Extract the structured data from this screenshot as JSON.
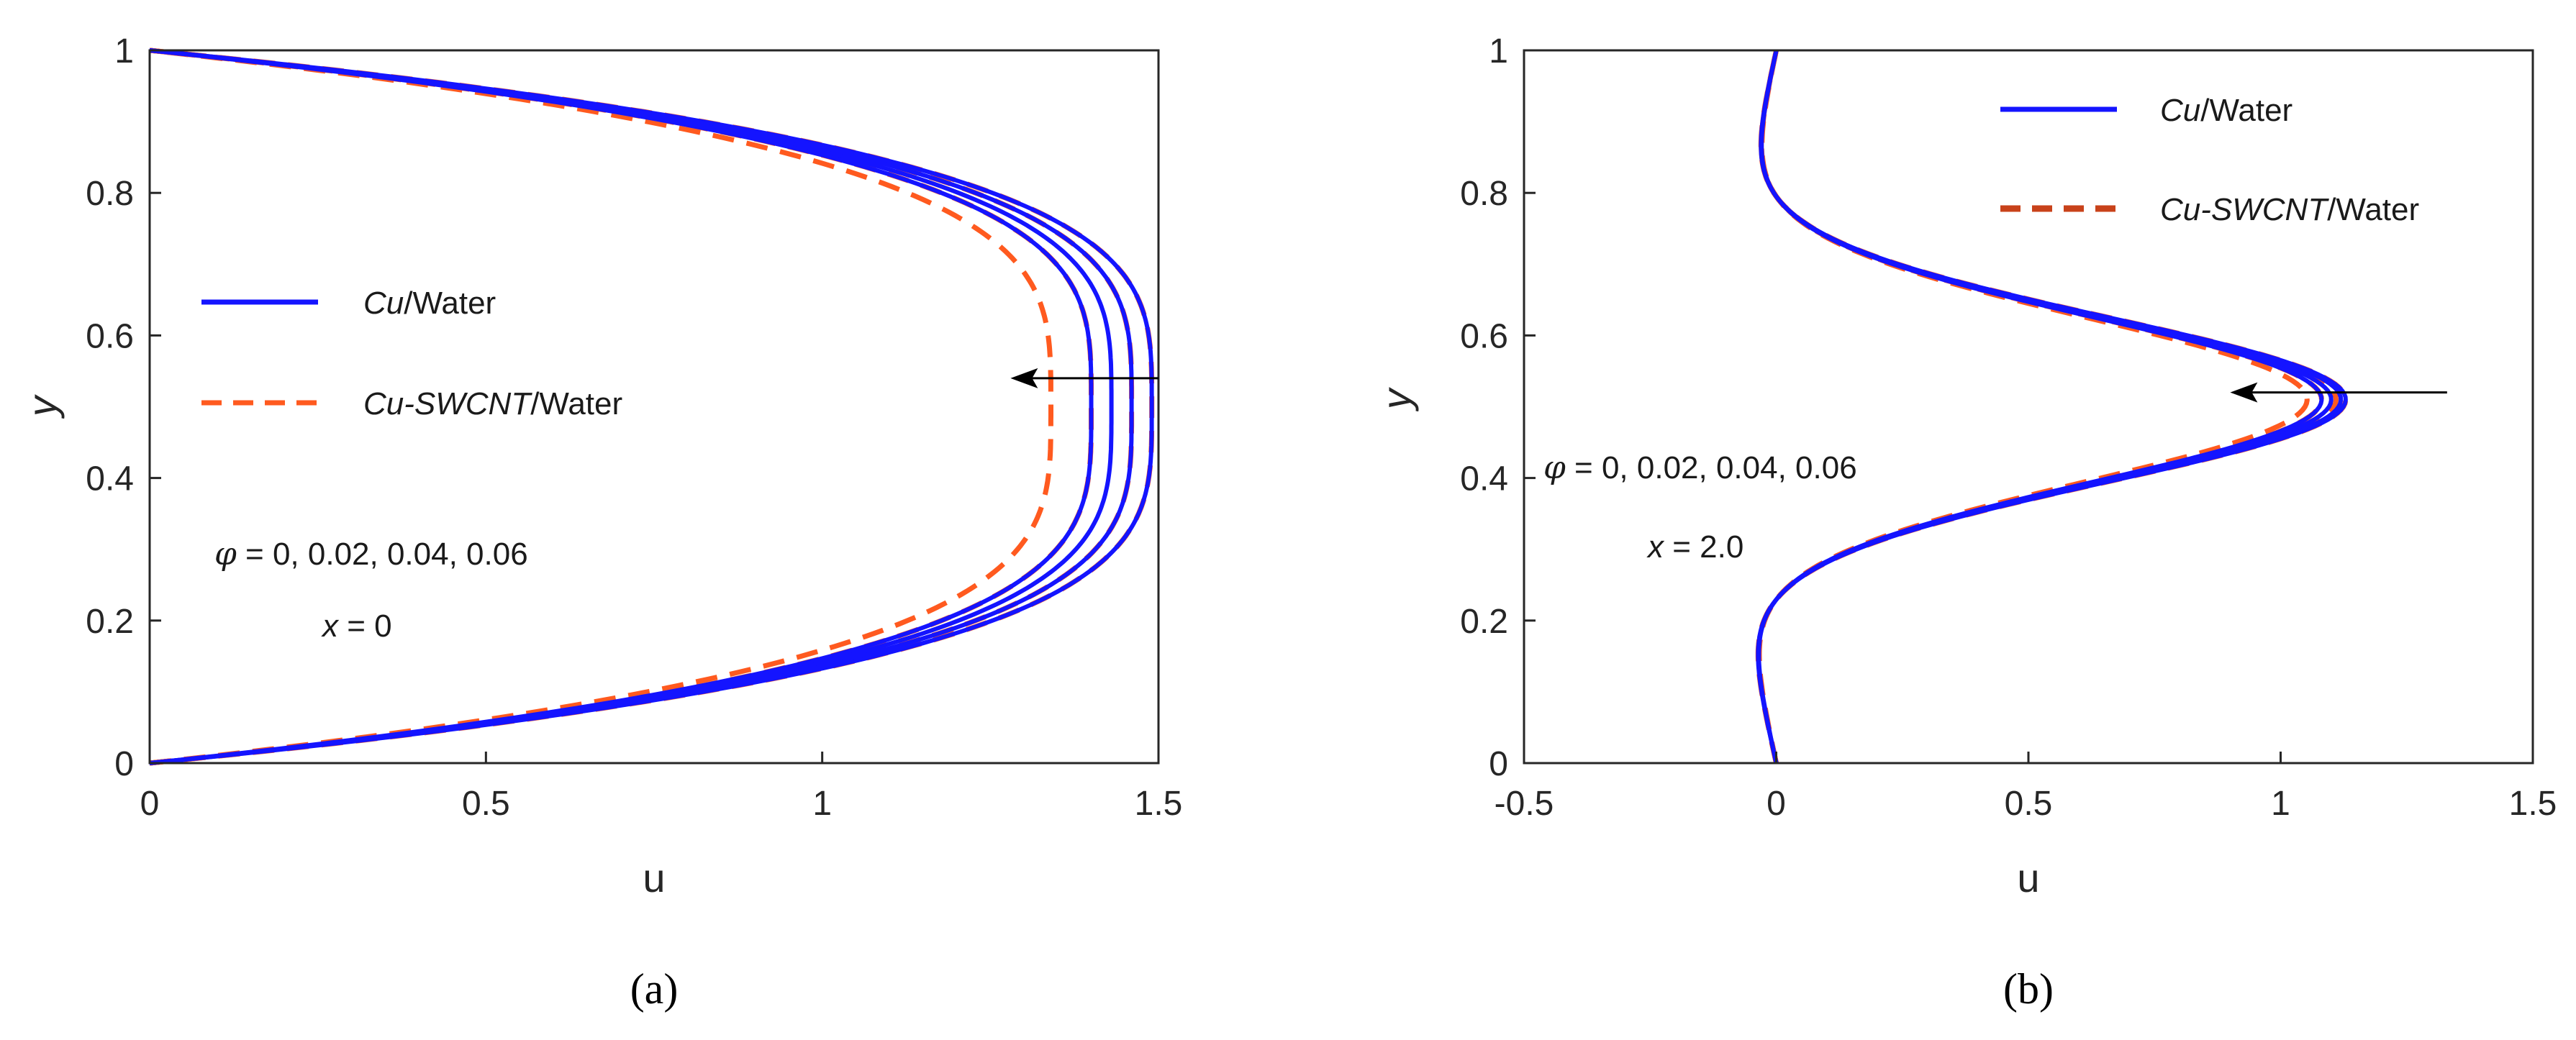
{
  "colors": {
    "cu_water": "#1414ff",
    "cu_swcnt_water": "#ff5a1f",
    "cu_swcnt_water_legend_b": "#c8421a",
    "axis": "#262626",
    "arrow": "#000000"
  },
  "chart_data": [
    {
      "type": "line",
      "caption": "(a)",
      "xlabel": "u",
      "ylabel": "y",
      "xlim": [
        0,
        1.5
      ],
      "ylim": [
        0,
        1
      ],
      "xticks": [
        "0",
        "0.5",
        "1",
        "1.5"
      ],
      "yticks": [
        "0",
        "0.2",
        "0.4",
        "0.6",
        "0.8",
        "1"
      ],
      "grid": false,
      "legend_placement": "center-left",
      "legend": [
        {
          "label_italic": "Cu",
          "label_rest": "/Water",
          "style": "solid"
        },
        {
          "label_italic": "Cu-SWCNT",
          "label_rest": "/Water",
          "style": "dashed"
        }
      ],
      "annotations": {
        "phi_symbol": "φ",
        "phi_values": " = 0, 0.02, 0.04, 0.06",
        "x_symbol": "x",
        "x_value": " = 0"
      },
      "arrow": {
        "from": [
          1.5,
          0.54
        ],
        "to": [
          1.28,
          0.54
        ],
        "meaning": "increasing φ"
      },
      "profile": "plateau",
      "series": [
        {
          "name": "Cu/Water",
          "phi": 0.0,
          "style": "solid",
          "umax": 1.49
        },
        {
          "name": "Cu/Water",
          "phi": 0.02,
          "style": "solid",
          "umax": 1.46
        },
        {
          "name": "Cu/Water",
          "phi": 0.04,
          "style": "solid",
          "umax": 1.43
        },
        {
          "name": "Cu/Water",
          "phi": 0.06,
          "style": "solid",
          "umax": 1.4
        },
        {
          "name": "Cu-SWCNT/Water",
          "phi": 0.0,
          "style": "dashed",
          "umax": 1.49
        },
        {
          "name": "Cu-SWCNT/Water",
          "phi": 0.02,
          "style": "dashed",
          "umax": 1.46
        },
        {
          "name": "Cu-SWCNT/Water",
          "phi": 0.04,
          "style": "dashed",
          "umax": 1.4
        },
        {
          "name": "Cu-SWCNT/Water",
          "phi": 0.06,
          "style": "dashed",
          "umax": 1.34
        }
      ]
    },
    {
      "type": "line",
      "caption": "(b)",
      "xlabel": "u",
      "ylabel": "y",
      "xlim": [
        -0.5,
        1.5
      ],
      "ylim": [
        0,
        1
      ],
      "xticks": [
        "-0.5",
        "0",
        "0.5",
        "1",
        "1.5"
      ],
      "yticks": [
        "0",
        "0.2",
        "0.4",
        "0.6",
        "0.8",
        "1"
      ],
      "grid": false,
      "legend_placement": "top-right",
      "legend": [
        {
          "label_italic": "Cu",
          "label_rest": "/Water",
          "style": "solid"
        },
        {
          "label_italic": "Cu-SWCNT",
          "label_rest": "/Water",
          "style": "dashed"
        }
      ],
      "annotations": {
        "phi_symbol": "φ",
        "phi_values": " = 0, 0.02, 0.04, 0.06",
        "x_symbol": "x",
        "x_value": " = 2.0"
      },
      "arrow": {
        "from": [
          1.33,
          0.52
        ],
        "to": [
          0.9,
          0.52
        ],
        "meaning": "increasing φ"
      },
      "profile": "wave",
      "series": [
        {
          "name": "Cu/Water",
          "phi": 0.0,
          "style": "solid",
          "umax": 1.18
        },
        {
          "name": "Cu/Water",
          "phi": 0.02,
          "style": "solid",
          "umax": 1.17
        },
        {
          "name": "Cu/Water",
          "phi": 0.04,
          "style": "solid",
          "umax": 1.15
        },
        {
          "name": "Cu/Water",
          "phi": 0.06,
          "style": "solid",
          "umax": 1.13
        },
        {
          "name": "Cu-SWCNT/Water",
          "phi": 0.0,
          "style": "dashed",
          "umax": 1.18
        },
        {
          "name": "Cu-SWCNT/Water",
          "phi": 0.02,
          "style": "dashed",
          "umax": 1.16
        },
        {
          "name": "Cu-SWCNT/Water",
          "phi": 0.04,
          "style": "dashed",
          "umax": 1.13
        },
        {
          "name": "Cu-SWCNT/Water",
          "phi": 0.06,
          "style": "dashed",
          "umax": 1.1
        }
      ]
    }
  ]
}
